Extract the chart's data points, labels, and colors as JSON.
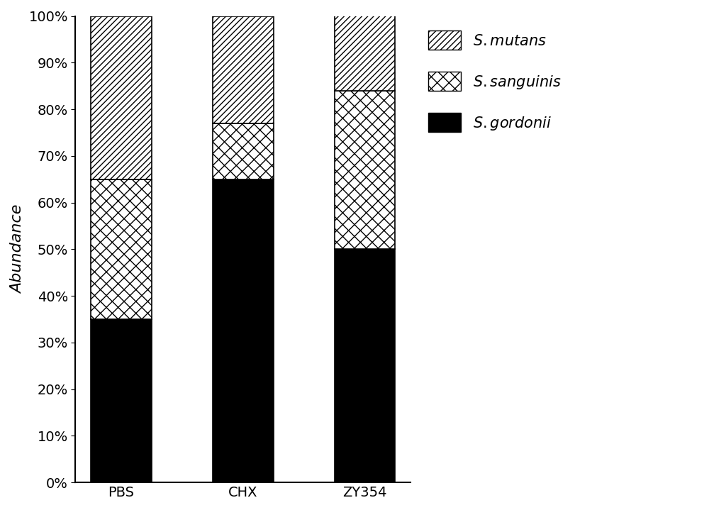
{
  "categories": [
    "PBS",
    "CHX",
    "ZY354"
  ],
  "gordonii": [
    35,
    65,
    50
  ],
  "sanguinis": [
    30,
    12,
    34
  ],
  "mutans": [
    35,
    23,
    16
  ],
  "ylabel": "Abundance",
  "bar_width": 0.5,
  "ylim": [
    0,
    100
  ],
  "yticks": [
    0,
    10,
    20,
    30,
    40,
    50,
    60,
    70,
    80,
    90,
    100
  ],
  "ytick_labels": [
    "0%",
    "10%",
    "20%",
    "30%",
    "40%",
    "50%",
    "60%",
    "70%",
    "80%",
    "90%",
    "100%"
  ],
  "figsize": [
    10.0,
    7.19
  ],
  "dpi": 100,
  "label_fontsize": 16,
  "tick_fontsize": 14,
  "legend_fontsize": 15
}
